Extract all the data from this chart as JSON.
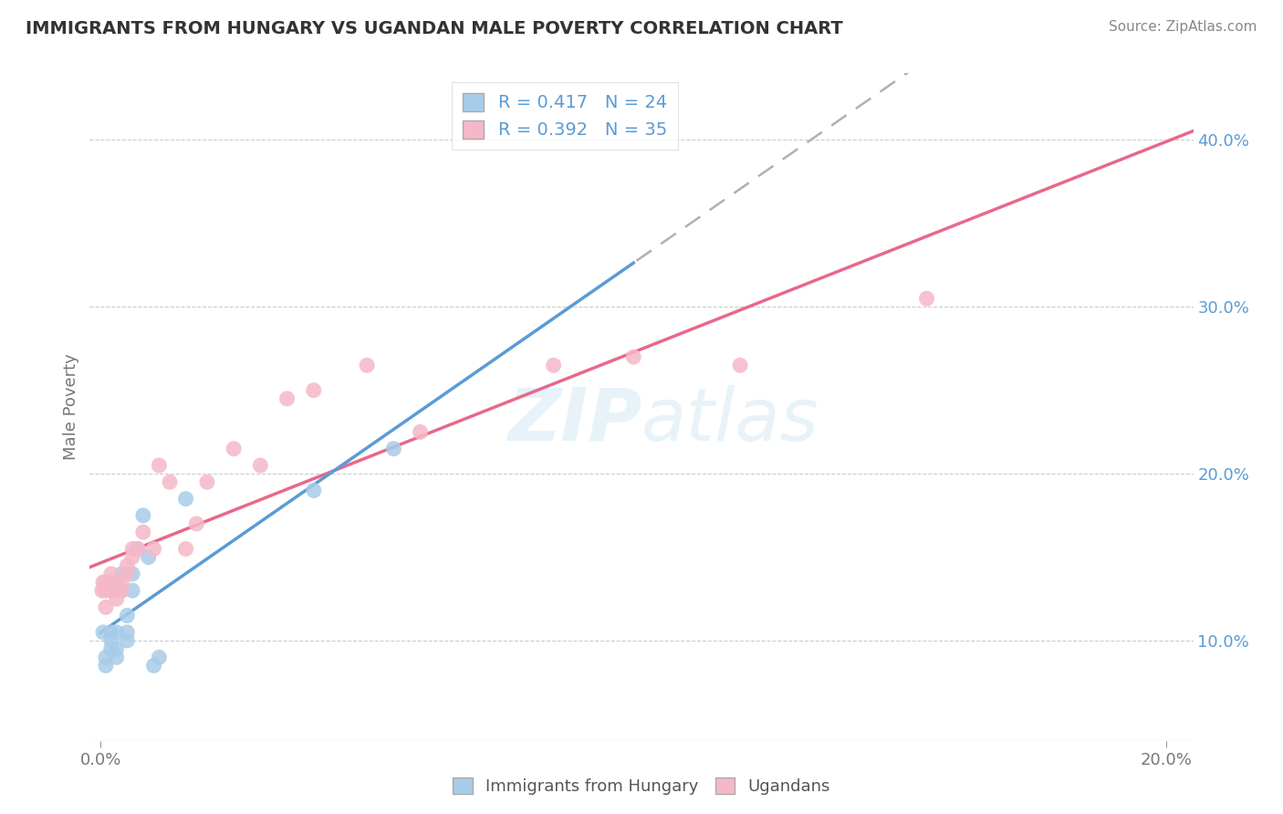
{
  "title": "IMMIGRANTS FROM HUNGARY VS UGANDAN MALE POVERTY CORRELATION CHART",
  "source": "Source: ZipAtlas.com",
  "ylabel": "Male Poverty",
  "legend_label1": "R = 0.417   N = 24",
  "legend_label2": "R = 0.392   N = 35",
  "legend_name1": "Immigrants from Hungary",
  "legend_name2": "Ugandans",
  "color_blue": "#a8cce8",
  "color_pink": "#f5b8c8",
  "color_blue_line": "#5b9bd5",
  "color_pink_line": "#e8688a",
  "color_gray_dashed": "#b0b0b0",
  "background_color": "#ffffff",
  "watermark": "ZIPatlas",
  "blue_x": [
    0.0005,
    0.001,
    0.001,
    0.002,
    0.002,
    0.002,
    0.003,
    0.003,
    0.003,
    0.004,
    0.004,
    0.005,
    0.005,
    0.005,
    0.006,
    0.006,
    0.007,
    0.008,
    0.009,
    0.01,
    0.011,
    0.016,
    0.04,
    0.055
  ],
  "blue_y": [
    0.105,
    0.085,
    0.09,
    0.095,
    0.1,
    0.105,
    0.09,
    0.095,
    0.105,
    0.13,
    0.14,
    0.1,
    0.105,
    0.115,
    0.13,
    0.14,
    0.155,
    0.175,
    0.15,
    0.085,
    0.09,
    0.185,
    0.19,
    0.215
  ],
  "pink_x": [
    0.0003,
    0.0005,
    0.001,
    0.001,
    0.001,
    0.002,
    0.002,
    0.002,
    0.003,
    0.003,
    0.003,
    0.004,
    0.004,
    0.005,
    0.005,
    0.006,
    0.006,
    0.007,
    0.008,
    0.01,
    0.011,
    0.013,
    0.016,
    0.018,
    0.02,
    0.025,
    0.03,
    0.035,
    0.04,
    0.05,
    0.06,
    0.085,
    0.1,
    0.12,
    0.155
  ],
  "pink_y": [
    0.13,
    0.135,
    0.12,
    0.13,
    0.135,
    0.13,
    0.135,
    0.14,
    0.125,
    0.13,
    0.135,
    0.13,
    0.135,
    0.14,
    0.145,
    0.15,
    0.155,
    0.155,
    0.165,
    0.155,
    0.205,
    0.195,
    0.155,
    0.17,
    0.195,
    0.215,
    0.205,
    0.245,
    0.25,
    0.265,
    0.225,
    0.265,
    0.27,
    0.265,
    0.305
  ],
  "xlim": [
    -0.002,
    0.205
  ],
  "ylim": [
    0.04,
    0.44
  ],
  "xticks": [
    0.0,
    0.2
  ],
  "xticklabels": [
    "0.0%",
    "20.0%"
  ],
  "yticks": [
    0.1,
    0.2,
    0.3,
    0.4
  ],
  "yticklabels": [
    "10.0%",
    "20.0%",
    "30.0%",
    "40.0%"
  ]
}
